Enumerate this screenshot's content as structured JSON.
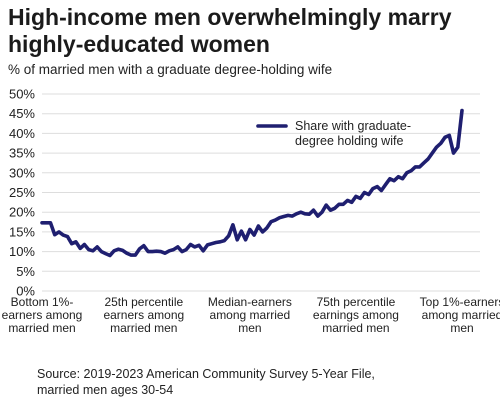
{
  "title": "High-income men overwhelmingly marry highly-educated women",
  "subtitle": "% of married men with a graduate degree-holding wife",
  "source": "Source: 2019-2023 American Community Survey 5-Year File, married men ages 30-54",
  "colors": {
    "line": "#1f1f70",
    "grid": "#dddddd",
    "text": "#222222"
  },
  "chart_data": {
    "type": "line",
    "title": "High-income men overwhelmingly marry highly-educated women",
    "subtitle": "% of married men with a graduate degree-holding wife",
    "xlabel": "",
    "ylabel": "",
    "x_range": [
      1,
      100
    ],
    "ylim": [
      0,
      50
    ],
    "y_ticks": [
      0,
      5,
      10,
      15,
      20,
      25,
      30,
      35,
      40,
      45,
      50
    ],
    "y_tick_labels": [
      "0%",
      "5%",
      "10%",
      "15%",
      "20%",
      "25%",
      "30%",
      "35%",
      "40%",
      "45%",
      "50%"
    ],
    "x_ticks": [
      {
        "x": 1,
        "label": [
          "Bottom 1%-",
          "earners among",
          "married men"
        ]
      },
      {
        "x": 25,
        "label": [
          "25th percentile",
          "earners among",
          "married men"
        ]
      },
      {
        "x": 50,
        "label": [
          "Median-earners",
          "among married",
          "men"
        ]
      },
      {
        "x": 75,
        "label": [
          "75th percentile",
          "earnings among",
          "married men"
        ]
      },
      {
        "x": 100,
        "label": [
          "Top 1%-earners",
          "among married",
          "men"
        ]
      }
    ],
    "grid": "horizontal",
    "legend": {
      "position": "top-right",
      "label": [
        "Share with graduate-",
        "degree holding wife"
      ]
    },
    "series": [
      {
        "name": "Share with graduate-degree holding wife",
        "x": [
          1,
          2,
          3,
          4,
          5,
          6,
          7,
          8,
          9,
          10,
          11,
          12,
          13,
          14,
          15,
          16,
          17,
          18,
          19,
          20,
          21,
          22,
          23,
          24,
          25,
          26,
          27,
          28,
          29,
          30,
          31,
          32,
          33,
          34,
          35,
          36,
          37,
          38,
          39,
          40,
          41,
          42,
          43,
          44,
          45,
          46,
          47,
          48,
          49,
          50,
          51,
          52,
          53,
          54,
          55,
          56,
          57,
          58,
          59,
          60,
          61,
          62,
          63,
          64,
          65,
          66,
          67,
          68,
          69,
          70,
          71,
          72,
          73,
          74,
          75,
          76,
          77,
          78,
          79,
          80,
          81,
          82,
          83,
          84,
          85,
          86,
          87,
          88,
          89,
          90,
          91,
          92,
          93,
          94,
          95,
          96,
          97,
          98,
          99,
          100
        ],
        "values": [
          17.3,
          17.3,
          17.3,
          14.3,
          15.0,
          14.2,
          13.8,
          12.0,
          12.5,
          10.8,
          11.8,
          10.5,
          10.2,
          11.2,
          10.0,
          9.5,
          9.0,
          10.2,
          10.6,
          10.3,
          9.6,
          9.1,
          9.1,
          10.7,
          11.5,
          10.0,
          10.0,
          10.1,
          10.0,
          9.6,
          10.2,
          10.5,
          11.2,
          10.0,
          10.5,
          11.8,
          11.2,
          11.6,
          10.2,
          11.7,
          12.0,
          12.3,
          12.5,
          12.8,
          14.0,
          16.8,
          13.0,
          15.2,
          13.0,
          15.6,
          14.2,
          16.5,
          15.0,
          16.0,
          17.6,
          18.0,
          18.6,
          18.9,
          19.2,
          19.0,
          19.6,
          20.0,
          19.6,
          19.5,
          20.5,
          19.0,
          20.0,
          21.8,
          20.5,
          21.0,
          22.0,
          22.0,
          23.0,
          22.5,
          24.0,
          23.5,
          25.0,
          24.5,
          26.0,
          26.5,
          25.5,
          27.0,
          28.5,
          28.0,
          29.0,
          28.5,
          30.0,
          30.5,
          31.5,
          31.5,
          32.5,
          33.5,
          35.0,
          36.5,
          37.5,
          39.0,
          39.5,
          35.0,
          36.5,
          45.8
        ]
      }
    ]
  }
}
